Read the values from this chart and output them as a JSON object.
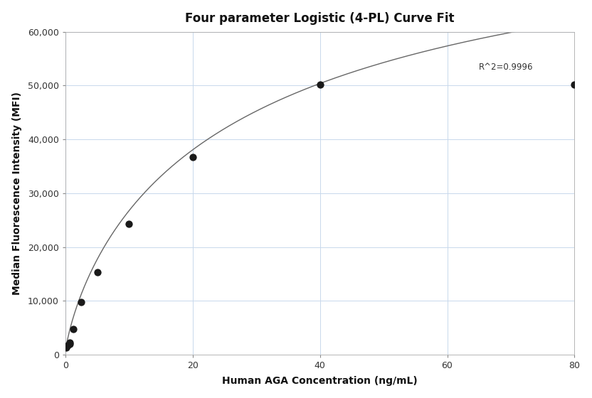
{
  "title": "Four parameter Logistic (4-PL) Curve Fit",
  "xlabel": "Human AGA Concentration (ng/mL)",
  "ylabel": "Median Fluorescence Intensity (MFI)",
  "scatter_x": [
    0.156,
    0.313,
    0.625,
    0.625,
    1.25,
    2.5,
    5.0,
    10.0,
    20.0,
    40.0,
    80.0
  ],
  "scatter_y": [
    1300,
    1700,
    2000,
    2300,
    4700,
    9800,
    15300,
    24300,
    36700,
    50200,
    50200
  ],
  "xlim": [
    0,
    80
  ],
  "ylim": [
    0,
    60000
  ],
  "yticks": [
    0,
    10000,
    20000,
    30000,
    40000,
    50000,
    60000
  ],
  "xticks": [
    0,
    20,
    40,
    60,
    80
  ],
  "r_squared": "R^2=0.9996",
  "r2_x": 65,
  "r2_y": 52500,
  "dot_color": "#1a1a1a",
  "line_color": "#666666",
  "grid_color": "#c8d8ec",
  "background_color": "#ffffff",
  "title_fontsize": 12,
  "label_fontsize": 10,
  "tick_fontsize": 9
}
